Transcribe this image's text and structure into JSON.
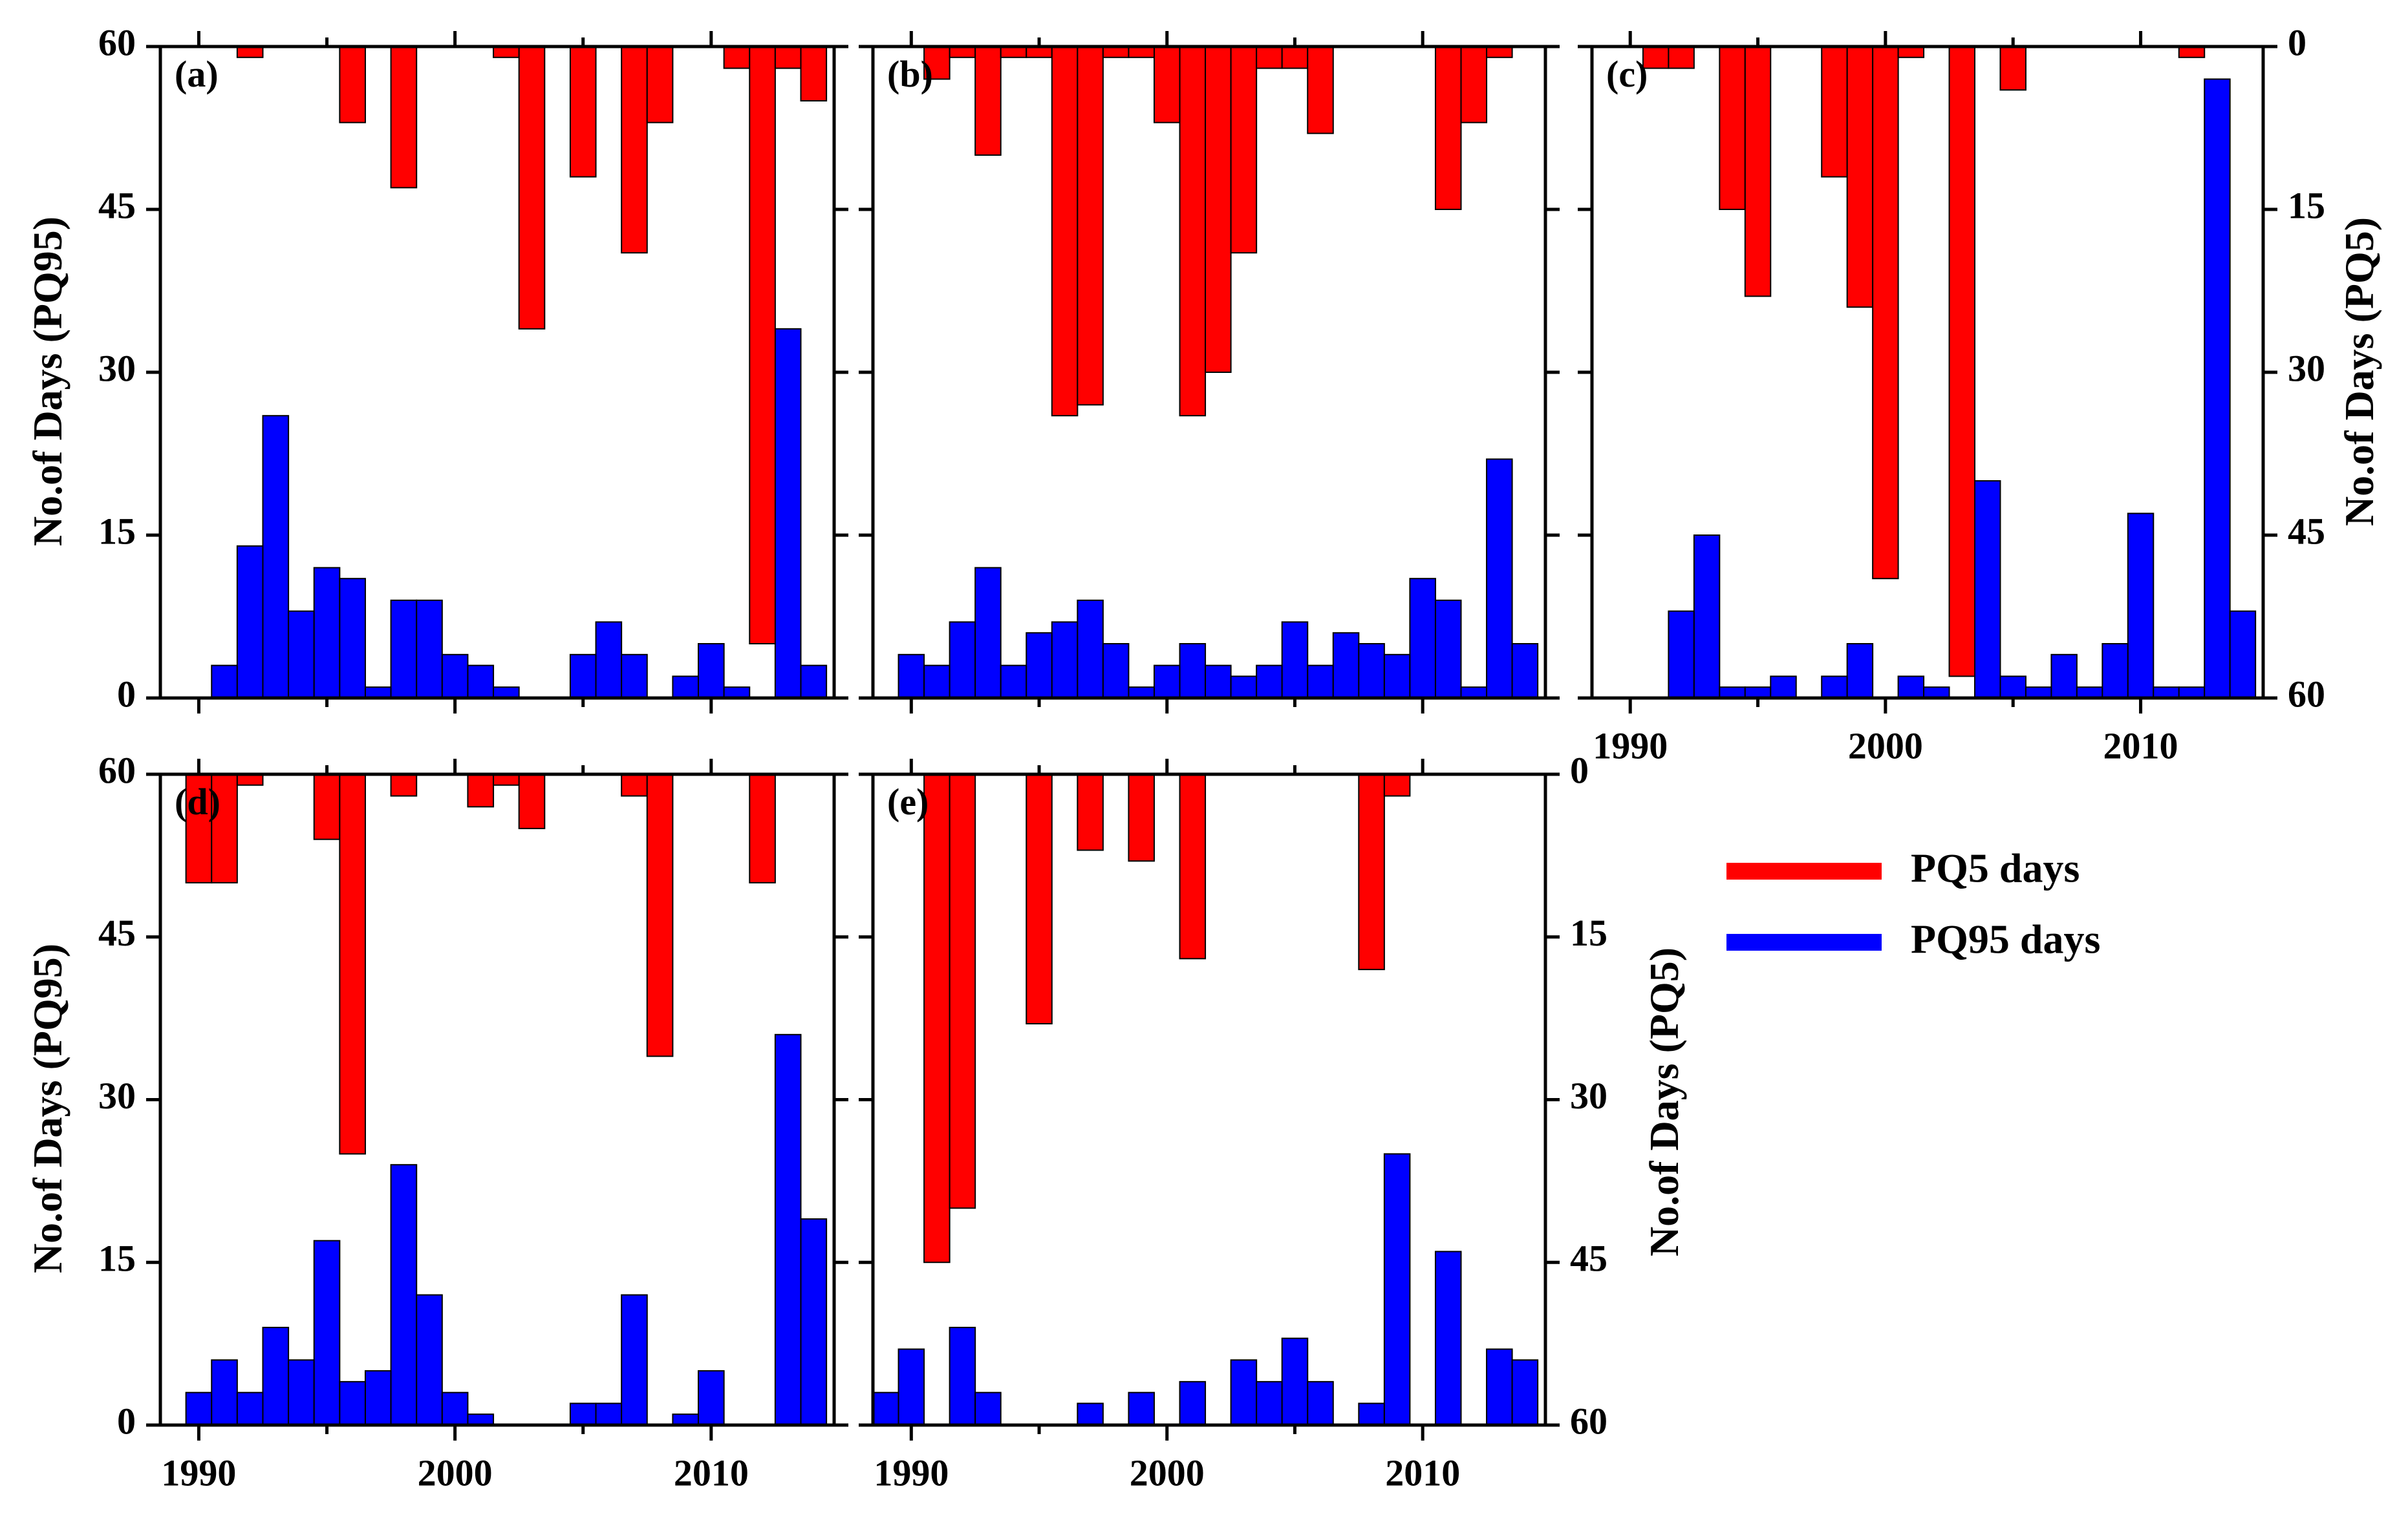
{
  "figure": {
    "left_axis_label": "No.of Days (PQ95)",
    "right_axis_label": "No.of Days (PQ5)",
    "x_ticks": [
      "1990",
      "2000",
      "2010"
    ],
    "left_ticks": [
      "60",
      "45",
      "30",
      "15",
      "0"
    ],
    "right_ticks": [
      "0",
      "15",
      "30",
      "45",
      "60"
    ]
  },
  "legend": {
    "pq5_label": "PQ5 days",
    "pq95_label": "PQ95 days",
    "pq5_color": "#ff0000",
    "pq95_color": "#0000ff"
  },
  "chart_data": [
    {
      "type": "bar",
      "panel": "(a)",
      "x": [
        1990,
        1991,
        1992,
        1993,
        1994,
        1995,
        1996,
        1997,
        1998,
        1999,
        2000,
        2001,
        2002,
        2003,
        2004,
        2005,
        2006,
        2007,
        2008,
        2009,
        2010,
        2011,
        2012,
        2013,
        2014
      ],
      "xlim": [
        1988.5,
        2014.8
      ],
      "ylim_left": [
        0,
        60
      ],
      "ylim_right_inverted": [
        0,
        60
      ],
      "series": [
        {
          "name": "PQ95 days",
          "axis": "left",
          "values": [
            0,
            3,
            14,
            26,
            8,
            12,
            11,
            1,
            9,
            9,
            4,
            3,
            1,
            0,
            0,
            4,
            7,
            4,
            0,
            2,
            5,
            1,
            0,
            34,
            3
          ]
        },
        {
          "name": "PQ5 days",
          "axis": "right",
          "values": [
            0,
            0,
            1,
            0,
            0,
            0,
            7,
            0,
            13,
            0,
            0,
            0,
            1,
            26,
            0,
            12,
            0,
            19,
            7,
            0,
            0,
            2,
            55,
            2,
            5
          ]
        }
      ]
    },
    {
      "type": "bar",
      "panel": "(b)",
      "x": [
        1990,
        1991,
        1992,
        1993,
        1994,
        1995,
        1996,
        1997,
        1998,
        1999,
        2000,
        2001,
        2002,
        2003,
        2004,
        2005,
        2006,
        2007,
        2008,
        2009,
        2010,
        2011,
        2012,
        2013,
        2014
      ],
      "xlim": [
        1988.5,
        2014.8
      ],
      "ylim_left": [
        0,
        60
      ],
      "ylim_right_inverted": [
        0,
        60
      ],
      "series": [
        {
          "name": "PQ95 days",
          "axis": "left",
          "values": [
            4,
            3,
            7,
            12,
            3,
            6,
            7,
            9,
            5,
            1,
            3,
            5,
            3,
            2,
            3,
            7,
            3,
            6,
            5,
            4,
            11,
            9,
            1,
            22,
            5
          ]
        },
        {
          "name": "PQ5 days",
          "axis": "right",
          "values": [
            0,
            3,
            1,
            10,
            1,
            1,
            34,
            33,
            1,
            1,
            7,
            34,
            30,
            19,
            2,
            2,
            8,
            0,
            0,
            0,
            0,
            15,
            7,
            1,
            0
          ]
        }
      ]
    },
    {
      "type": "bar",
      "panel": "(c)",
      "x": [
        1990,
        1991,
        1992,
        1993,
        1994,
        1995,
        1996,
        1997,
        1998,
        1999,
        2000,
        2001,
        2002,
        2003,
        2004,
        2005,
        2006,
        2007,
        2008,
        2009,
        2010,
        2011,
        2012,
        2013,
        2014
      ],
      "xlim": [
        1988.5,
        2014.8
      ],
      "ylim_left": [
        0,
        60
      ],
      "ylim_right_inverted": [
        0,
        60
      ],
      "series": [
        {
          "name": "PQ95 days",
          "axis": "left",
          "values": [
            0,
            0,
            8,
            15,
            1,
            1,
            2,
            0,
            2,
            5,
            0,
            2,
            1,
            0,
            20,
            2,
            1,
            4,
            1,
            5,
            17,
            1,
            1,
            57,
            8
          ]
        },
        {
          "name": "PQ5 days",
          "axis": "right",
          "values": [
            0,
            2,
            2,
            0,
            15,
            23,
            0,
            0,
            12,
            24,
            49,
            1,
            0,
            58,
            0,
            4,
            0,
            0,
            0,
            0,
            0,
            0,
            1,
            0,
            0
          ]
        }
      ]
    },
    {
      "type": "bar",
      "panel": "(d)",
      "x": [
        1990,
        1991,
        1992,
        1993,
        1994,
        1995,
        1996,
        1997,
        1998,
        1999,
        2000,
        2001,
        2002,
        2003,
        2004,
        2005,
        2006,
        2007,
        2008,
        2009,
        2010,
        2011,
        2012,
        2013,
        2014
      ],
      "xlim": [
        1988.5,
        2014.8
      ],
      "ylim_left": [
        0,
        60
      ],
      "ylim_right_inverted": [
        0,
        60
      ],
      "series": [
        {
          "name": "PQ95 days",
          "axis": "left",
          "values": [
            3,
            6,
            3,
            9,
            6,
            17,
            4,
            5,
            24,
            12,
            3,
            1,
            0,
            0,
            0,
            2,
            2,
            12,
            0,
            1,
            5,
            0,
            0,
            36,
            19
          ]
        },
        {
          "name": "PQ5 days",
          "axis": "right",
          "values": [
            10,
            10,
            1,
            0,
            0,
            6,
            35,
            0,
            2,
            0,
            0,
            3,
            1,
            5,
            0,
            0,
            0,
            2,
            26,
            0,
            0,
            0,
            10,
            0,
            0
          ]
        }
      ]
    },
    {
      "type": "bar",
      "panel": "(e)",
      "x": [
        1989,
        1990,
        1991,
        1992,
        1993,
        1994,
        1995,
        1996,
        1997,
        1998,
        1999,
        2000,
        2001,
        2002,
        2003,
        2004,
        2005,
        2006,
        2007,
        2008,
        2009,
        2010,
        2011,
        2012,
        2013,
        2014
      ],
      "xlim": [
        1988.5,
        2014.8
      ],
      "ylim_left": [
        0,
        60
      ],
      "ylim_right_inverted": [
        0,
        60
      ],
      "series": [
        {
          "name": "PQ95 days",
          "axis": "left",
          "values": [
            3,
            7,
            0,
            9,
            3,
            0,
            0,
            0,
            2,
            0,
            3,
            0,
            4,
            0,
            6,
            4,
            8,
            4,
            0,
            2,
            25,
            0,
            16,
            0,
            7,
            6
          ]
        },
        {
          "name": "PQ5 days",
          "axis": "right",
          "values": [
            0,
            0,
            45,
            40,
            0,
            0,
            23,
            0,
            7,
            0,
            8,
            0,
            17,
            0,
            0,
            0,
            0,
            0,
            0,
            18,
            2,
            0,
            0,
            0,
            0,
            0
          ]
        }
      ]
    }
  ]
}
